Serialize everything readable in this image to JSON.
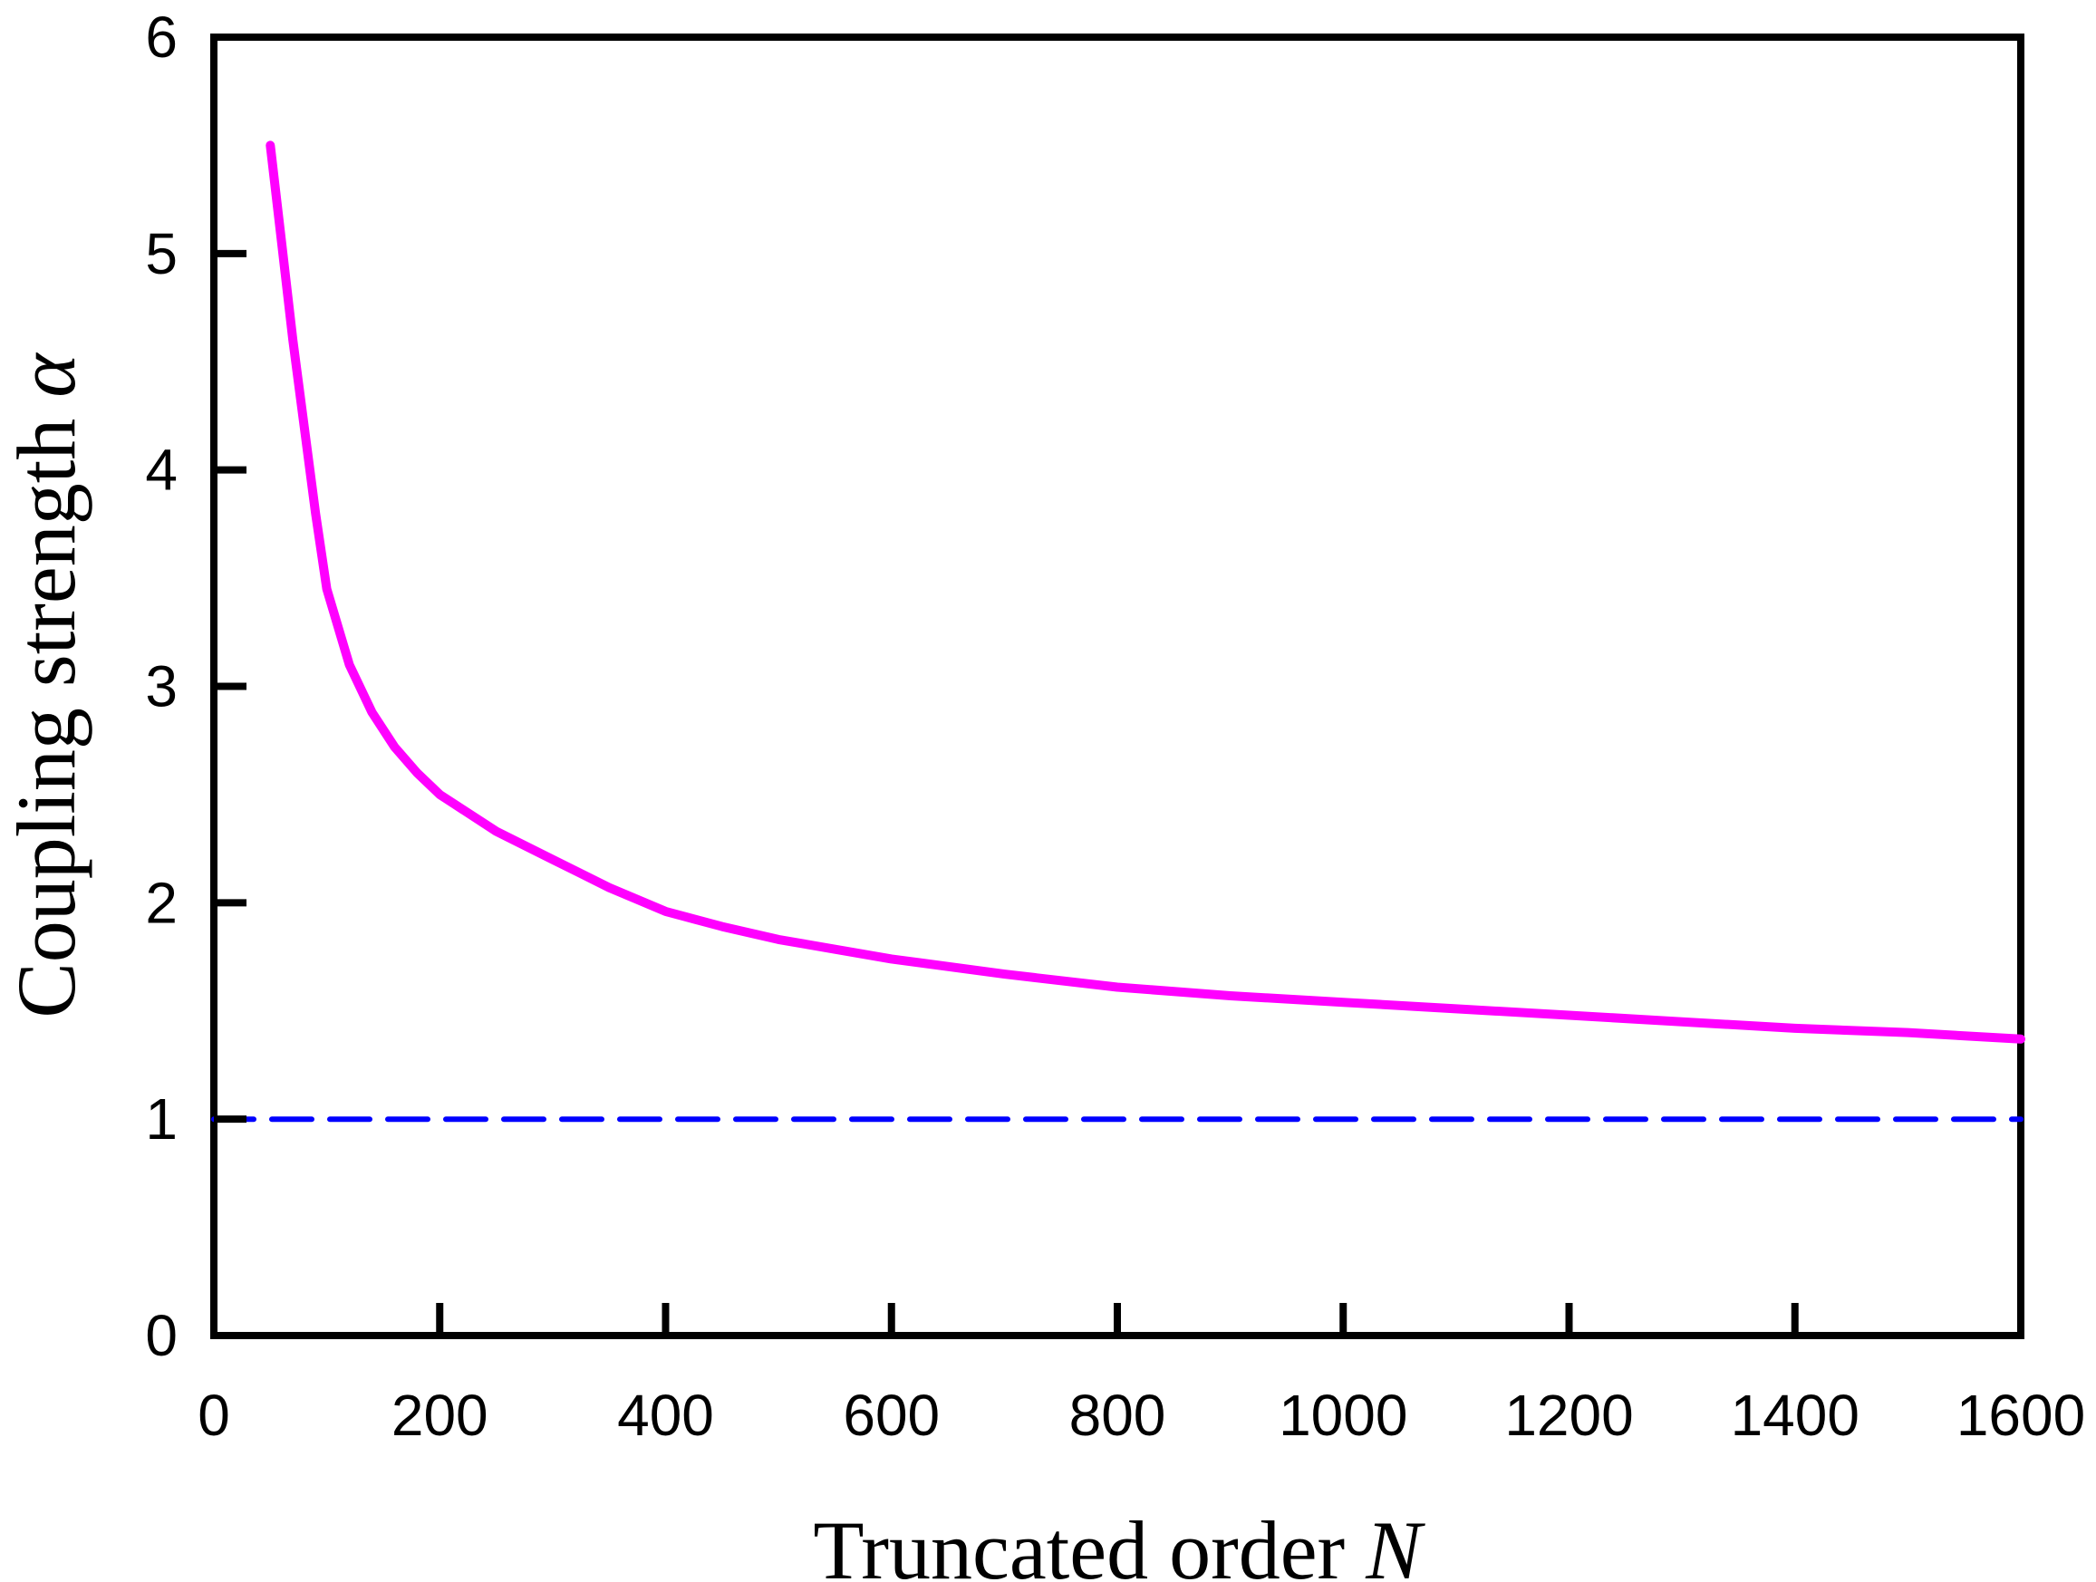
{
  "chart_data": {
    "type": "line",
    "xlabel": "Truncated order",
    "xlabel_symbol": "N",
    "ylabel": "Coupling strength",
    "ylabel_symbol": "α",
    "xlim": [
      0,
      1600
    ],
    "ylim": [
      0,
      6
    ],
    "xticks": [
      "0",
      "200",
      "400",
      "600",
      "800",
      "1000",
      "1200",
      "1400",
      "1600"
    ],
    "yticks": [
      "0",
      "1",
      "2",
      "3",
      "4",
      "5",
      "6"
    ],
    "grid": false,
    "series": [
      {
        "color": "#ff00ff",
        "style": "solid",
        "x": [
          50,
          60,
          70,
          80,
          90,
          100,
          120,
          140,
          160,
          180,
          200,
          250,
          300,
          350,
          400,
          450,
          500,
          600,
          700,
          800,
          900,
          1000,
          1100,
          1200,
          1300,
          1400,
          1500,
          1600
        ],
        "y": [
          5.5,
          5.05,
          4.6,
          4.2,
          3.8,
          3.45,
          3.1,
          2.88,
          2.72,
          2.6,
          2.5,
          2.33,
          2.2,
          2.07,
          1.96,
          1.89,
          1.83,
          1.74,
          1.67,
          1.61,
          1.57,
          1.54,
          1.51,
          1.48,
          1.45,
          1.42,
          1.4,
          1.37
        ]
      },
      {
        "color": "#0000ff",
        "style": "dashed",
        "x": [
          0,
          1600
        ],
        "y": [
          1,
          1
        ]
      }
    ]
  }
}
